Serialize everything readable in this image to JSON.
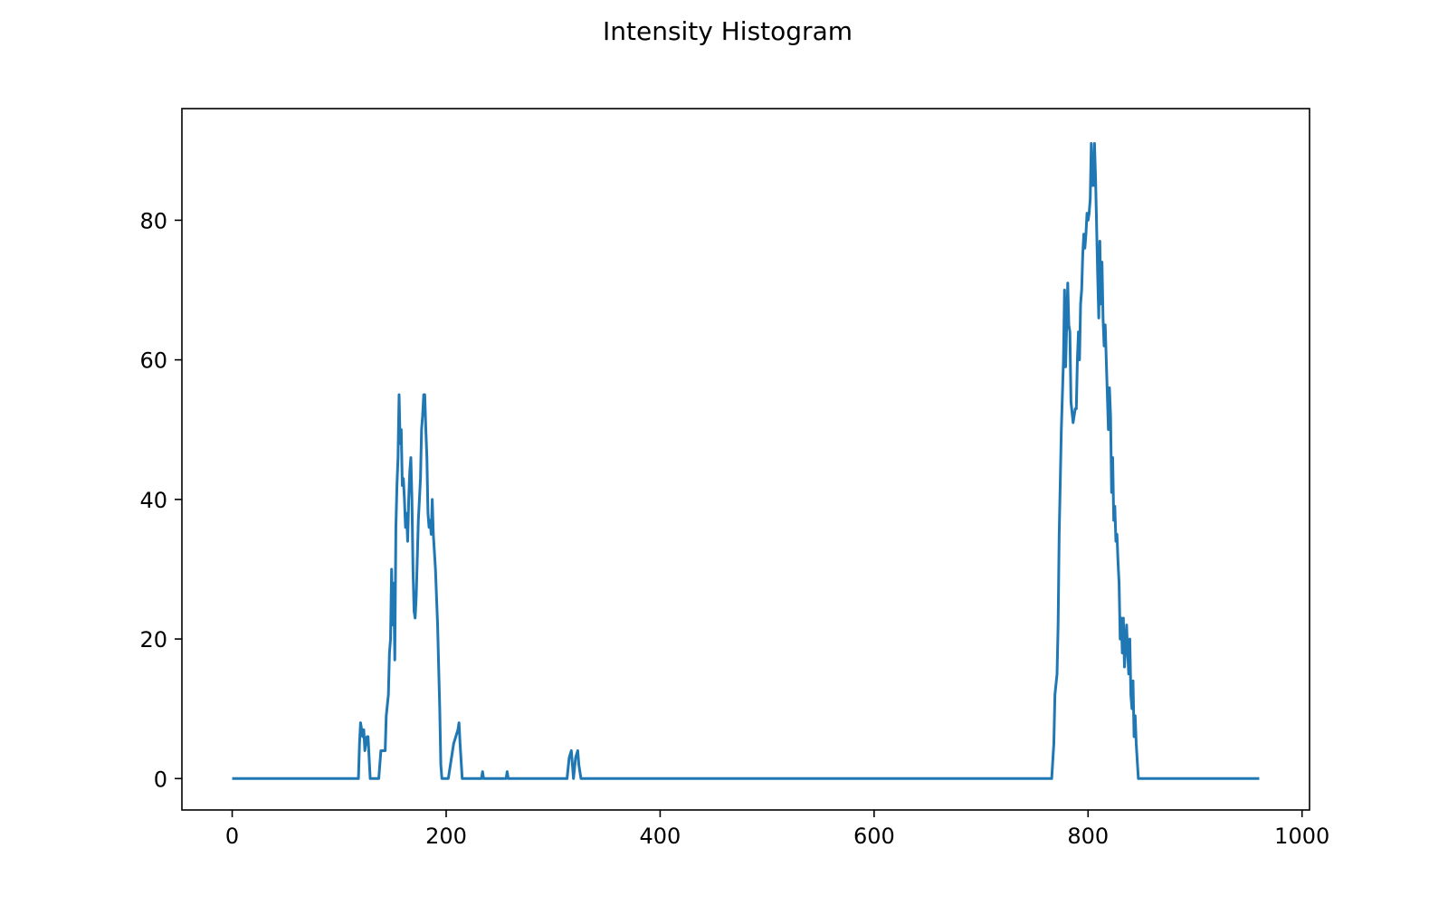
{
  "chart_data": {
    "type": "line",
    "title": "Intensity Histogram",
    "xlabel": "",
    "ylabel": "",
    "xlim": [
      -47,
      1007
    ],
    "ylim": [
      -4.5,
      96
    ],
    "xticks": [
      0,
      200,
      400,
      600,
      800,
      1000
    ],
    "yticks": [
      0,
      20,
      40,
      60,
      80
    ],
    "grid": false,
    "series": [
      {
        "color": "#1f77b4",
        "points": [
          [
            0,
            0
          ],
          [
            118,
            0
          ],
          [
            119,
            5
          ],
          [
            120,
            8
          ],
          [
            122,
            6
          ],
          [
            123,
            7
          ],
          [
            124,
            4
          ],
          [
            126,
            6
          ],
          [
            127,
            6
          ],
          [
            128,
            3
          ],
          [
            129,
            0
          ],
          [
            137,
            0
          ],
          [
            139,
            4
          ],
          [
            143,
            4
          ],
          [
            144,
            9
          ],
          [
            146,
            12
          ],
          [
            147,
            18
          ],
          [
            148,
            20
          ],
          [
            149,
            30
          ],
          [
            150,
            22
          ],
          [
            151,
            28
          ],
          [
            152,
            17
          ],
          [
            153,
            36
          ],
          [
            154,
            42
          ],
          [
            155,
            46
          ],
          [
            156,
            55
          ],
          [
            157,
            48
          ],
          [
            158,
            50
          ],
          [
            159,
            42
          ],
          [
            160,
            43
          ],
          [
            161,
            40
          ],
          [
            162,
            36
          ],
          [
            163,
            38
          ],
          [
            164,
            34
          ],
          [
            165,
            40
          ],
          [
            166,
            44
          ],
          [
            167,
            46
          ],
          [
            168,
            40
          ],
          [
            169,
            30
          ],
          [
            170,
            24
          ],
          [
            171,
            23
          ],
          [
            172,
            26
          ],
          [
            174,
            37
          ],
          [
            176,
            43
          ],
          [
            177,
            50
          ],
          [
            178,
            52
          ],
          [
            179,
            55
          ],
          [
            180,
            55
          ],
          [
            181,
            50
          ],
          [
            182,
            46
          ],
          [
            183,
            38
          ],
          [
            184,
            36
          ],
          [
            185,
            37
          ],
          [
            186,
            35
          ],
          [
            187,
            40
          ],
          [
            188,
            35
          ],
          [
            190,
            30
          ],
          [
            192,
            22
          ],
          [
            194,
            10
          ],
          [
            195,
            2
          ],
          [
            196,
            0
          ],
          [
            202,
            0
          ],
          [
            205,
            3
          ],
          [
            207,
            5
          ],
          [
            209,
            6
          ],
          [
            211,
            7
          ],
          [
            212,
            8
          ],
          [
            213,
            5
          ],
          [
            215,
            0
          ],
          [
            233,
            0
          ],
          [
            234,
            1
          ],
          [
            235,
            0
          ],
          [
            256,
            0
          ],
          [
            257,
            1
          ],
          [
            258,
            0
          ],
          [
            313,
            0
          ],
          [
            315,
            3
          ],
          [
            317,
            4
          ],
          [
            318,
            2
          ],
          [
            319,
            0
          ],
          [
            321,
            3
          ],
          [
            323,
            4
          ],
          [
            324,
            2
          ],
          [
            326,
            0
          ],
          [
            766,
            0
          ],
          [
            768,
            5
          ],
          [
            769,
            12
          ],
          [
            771,
            15
          ],
          [
            772,
            22
          ],
          [
            773,
            35
          ],
          [
            775,
            50
          ],
          [
            776,
            55
          ],
          [
            777,
            60
          ],
          [
            778,
            70
          ],
          [
            779,
            59
          ],
          [
            780,
            65
          ],
          [
            781,
            71
          ],
          [
            782,
            65
          ],
          [
            783,
            64
          ],
          [
            784,
            54
          ],
          [
            786,
            51
          ],
          [
            788,
            53
          ],
          [
            789,
            53
          ],
          [
            790,
            60
          ],
          [
            791,
            64
          ],
          [
            792,
            60
          ],
          [
            793,
            68
          ],
          [
            794,
            70
          ],
          [
            795,
            75
          ],
          [
            796,
            78
          ],
          [
            797,
            76
          ],
          [
            798,
            78
          ],
          [
            799,
            81
          ],
          [
            800,
            80
          ],
          [
            801,
            81
          ],
          [
            802,
            83
          ],
          [
            803,
            91
          ],
          [
            804,
            85
          ],
          [
            805,
            85
          ],
          [
            806,
            91
          ],
          [
            807,
            86
          ],
          [
            808,
            79
          ],
          [
            809,
            72
          ],
          [
            810,
            66
          ],
          [
            811,
            77
          ],
          [
            812,
            68
          ],
          [
            813,
            74
          ],
          [
            814,
            66
          ],
          [
            815,
            62
          ],
          [
            816,
            65
          ],
          [
            817,
            60
          ],
          [
            818,
            55
          ],
          [
            819,
            50
          ],
          [
            820,
            56
          ],
          [
            821,
            52
          ],
          [
            822,
            41
          ],
          [
            823,
            46
          ],
          [
            824,
            37
          ],
          [
            825,
            39
          ],
          [
            826,
            34
          ],
          [
            827,
            35
          ],
          [
            828,
            31
          ],
          [
            829,
            28
          ],
          [
            830,
            20
          ],
          [
            831,
            23
          ],
          [
            832,
            18
          ],
          [
            833,
            23
          ],
          [
            834,
            16
          ],
          [
            835,
            19
          ],
          [
            836,
            22
          ],
          [
            837,
            18
          ],
          [
            838,
            15
          ],
          [
            839,
            20
          ],
          [
            840,
            12
          ],
          [
            841,
            10
          ],
          [
            842,
            14
          ],
          [
            843,
            6
          ],
          [
            844,
            9
          ],
          [
            845,
            5
          ],
          [
            847,
            0
          ],
          [
            960,
            0
          ]
        ]
      }
    ]
  }
}
